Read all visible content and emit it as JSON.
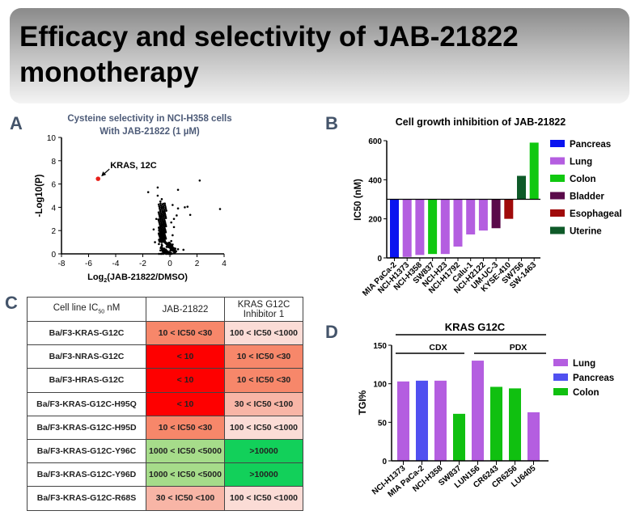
{
  "title": "Efficacy and selectivity of JAB-21822 monotherapy",
  "panels": {
    "a": "A",
    "b": "B",
    "c": "C",
    "d": "D"
  },
  "chart_data": [
    {
      "type": "scatter",
      "title": "Cysteine selectivity in NCI-H358 cells",
      "subtitle": "With JAB-21822 (1 µM)",
      "xlabel": "Log2(JAB-21822/DMSO)",
      "ylabel": "-Log10(P)",
      "xlim": [
        -8,
        4
      ],
      "ylim": [
        0,
        10
      ],
      "xticks": [
        -8,
        -6,
        -4,
        -2,
        0,
        2,
        4
      ],
      "yticks": [
        0,
        2,
        4,
        6,
        8,
        10
      ],
      "highlight": {
        "label": "KRAS, 12C",
        "x": -5.3,
        "y": 6.45,
        "color": "#e8201a"
      },
      "points": [
        [
          2.2,
          6.3
        ],
        [
          3.7,
          3.85
        ],
        [
          -1.6,
          5.3
        ],
        [
          -0.9,
          5.7
        ],
        [
          0.6,
          5.5
        ],
        [
          -0.9,
          5.0
        ],
        [
          -0.6,
          4.7
        ],
        [
          -0.5,
          4.3
        ],
        [
          0.2,
          4.2
        ],
        [
          1.1,
          4.0
        ],
        [
          1.3,
          4.05
        ],
        [
          1.5,
          3.35
        ],
        [
          0.6,
          3.9
        ],
        [
          0.5,
          3.3
        ],
        [
          -0.7,
          4.5
        ],
        [
          -0.6,
          4.0
        ],
        [
          -0.5,
          3.6
        ],
        [
          -0.7,
          3.2
        ],
        [
          -0.5,
          2.8
        ],
        [
          -0.6,
          2.4
        ],
        [
          -0.8,
          2.0
        ],
        [
          -0.4,
          1.8
        ],
        [
          -0.6,
          1.5
        ],
        [
          -1.1,
          1.0
        ],
        [
          -0.5,
          1.2
        ],
        [
          -0.3,
          0.9
        ],
        [
          -0.6,
          0.8
        ],
        [
          -0.2,
          0.6
        ],
        [
          0.0,
          0.7
        ],
        [
          0.2,
          0.5
        ],
        [
          0.4,
          0.45
        ],
        [
          0.6,
          0.4
        ],
        [
          1.0,
          0.35
        ],
        [
          0.1,
          1.1
        ],
        [
          0.2,
          1.6
        ],
        [
          0.3,
          2.3
        ],
        [
          0.1,
          2.7
        ],
        [
          -0.4,
          0.4
        ],
        [
          -0.7,
          0.3
        ],
        [
          -0.3,
          0.2
        ],
        [
          0.0,
          0.15
        ],
        [
          -0.5,
          0.1
        ],
        [
          -1.2,
          2.1
        ],
        [
          -1.0,
          3.0
        ],
        [
          0.3,
          3.0
        ]
      ]
    },
    {
      "type": "bar",
      "title": "Cell growth inhibition of JAB-21822",
      "ylabel": "IC50 (nM)",
      "ylim": [
        0,
        600
      ],
      "yticks": [
        0,
        200,
        400,
        600
      ],
      "baseline": 300,
      "categories": [
        "MIA PaCa-2",
        "NCI-H1373",
        "NCI-H358",
        "SW837",
        "NCI-H23",
        "NCI-H1792",
        "Calu-1",
        "NCI-H2122",
        "UM-UC-3",
        "KYSE-410",
        "SW756",
        "SW-1463"
      ],
      "values": [
        0,
        5,
        15,
        20,
        20,
        58,
        120,
        140,
        152,
        200,
        420,
        590
      ],
      "groups": [
        "Pancreas",
        "Lung",
        "Lung",
        "Colon",
        "Lung",
        "Lung",
        "Lung",
        "Lung",
        "Bladder",
        "Esophageal",
        "Uterine",
        "Colon"
      ],
      "legend": [
        {
          "name": "Pancreas",
          "color": "#0a14f0"
        },
        {
          "name": "Lung",
          "color": "#b45ee0"
        },
        {
          "name": "Colon",
          "color": "#10c810"
        },
        {
          "name": "Bladder",
          "color": "#5a0a4a"
        },
        {
          "name": "Esophageal",
          "color": "#a00a0a"
        },
        {
          "name": "Uterine",
          "color": "#0e5a28"
        }
      ],
      "legend_position": "right"
    },
    {
      "type": "table",
      "headers": [
        "Cell line IC50 nM",
        "JAB-21822",
        "KRAS G12C Inhibitor 1"
      ],
      "rows": [
        [
          "Ba/F3-KRAS-G12C",
          "10 < IC50 <30",
          "100 < IC50 <1000"
        ],
        [
          "Ba/F3-NRAS-G12C",
          "< 10",
          "10 < IC50 <30"
        ],
        [
          "Ba/F3-HRAS-G12C",
          "< 10",
          "10 < IC50 <30"
        ],
        [
          "Ba/F3-KRAS-G12C-H95Q",
          "< 10",
          "30 < IC50 <100"
        ],
        [
          "Ba/F3-KRAS-G12C-H95D",
          "10 < IC50 <30",
          "100 < IC50 <1000"
        ],
        [
          "Ba/F3-KRAS-G12C-Y96C",
          "1000 < IC50 <5000",
          ">10000"
        ],
        [
          "Ba/F3-KRAS-G12C-Y96D",
          "1000 < IC50 <5000",
          ">10000"
        ],
        [
          "Ba/F3-KRAS-G12C-R68S",
          "30 < IC50 <100",
          "100 < IC50 <1000"
        ]
      ],
      "range_colors": {
        "< 10": "#fe0000",
        "10 < IC50 <30": "#f7876a",
        "30 < IC50 <100": "#f8b5a6",
        "100 < IC50 <1000": "#fbdcd6",
        "1000 < IC50 <5000": "#a6dc8a",
        ">10000": "#12d05a"
      }
    },
    {
      "type": "bar",
      "title": "KRAS G12C",
      "ylabel": "TGI%",
      "ylim": [
        0,
        150
      ],
      "yticks": [
        0,
        50,
        100,
        150
      ],
      "brackets": [
        {
          "label": "CDX",
          "from": "NCI-H1373",
          "to": "SW837"
        },
        {
          "label": "PDX",
          "from": "LUN156",
          "to": "LU6405"
        }
      ],
      "categories": [
        "NCI-H1373",
        "MIA PaCa-2",
        "NCI-H358",
        "SW837",
        "LUN156",
        "CR6243",
        "CR6256",
        "LU6405"
      ],
      "values": [
        103,
        104,
        104,
        61,
        130,
        96,
        94,
        63
      ],
      "groups": [
        "Lung",
        "Pancreas",
        "Lung",
        "Colon",
        "Lung",
        "Colon",
        "Colon",
        "Lung"
      ],
      "legend": [
        {
          "name": "Lung",
          "color": "#b45ee0"
        },
        {
          "name": "Pancreas",
          "color": "#5050f0"
        },
        {
          "name": "Colon",
          "color": "#10c010"
        }
      ],
      "legend_position": "right"
    }
  ]
}
